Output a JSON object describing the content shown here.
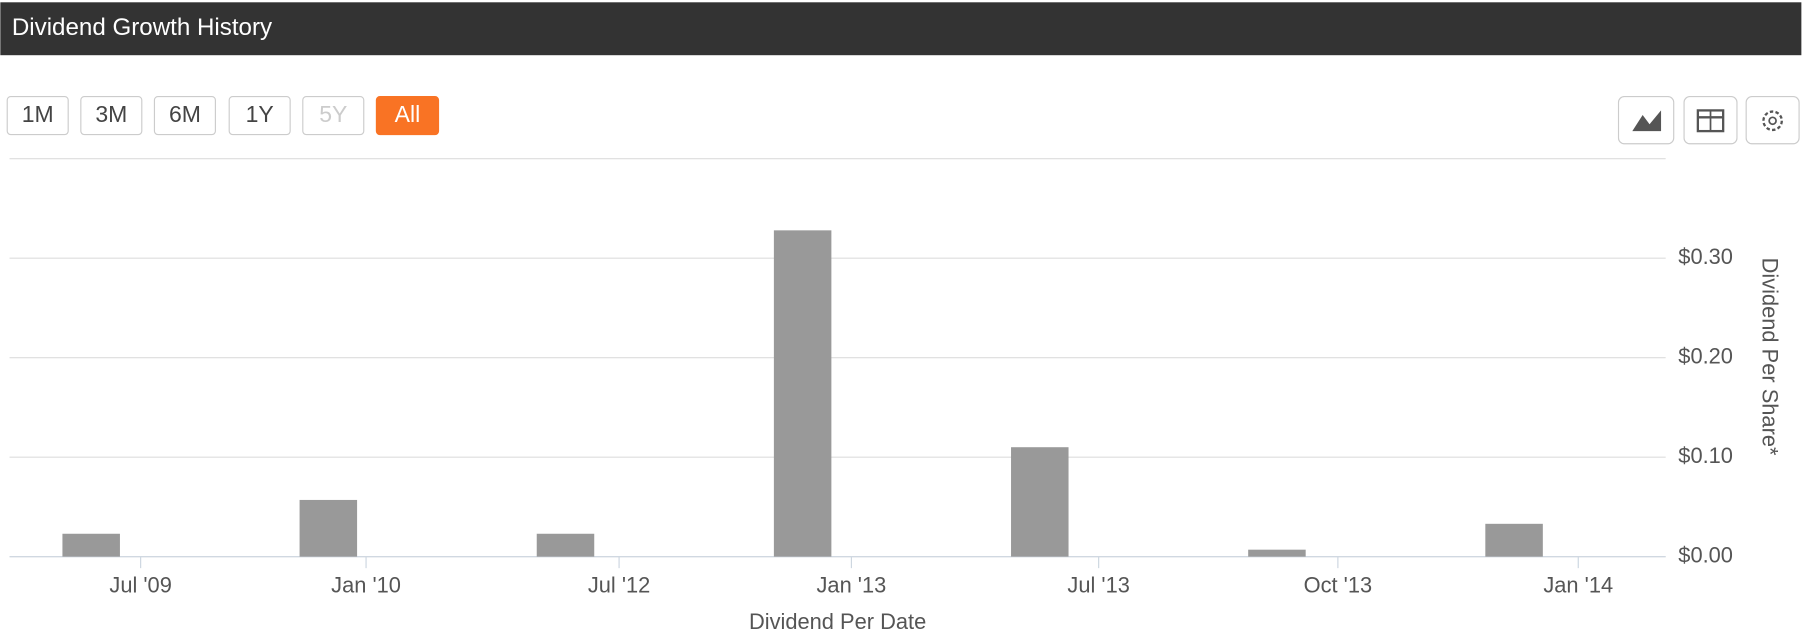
{
  "header": {
    "title": "Dividend Growth History"
  },
  "range_buttons": [
    "1M",
    "3M",
    "6M",
    "1Y",
    "5Y",
    "All"
  ],
  "chart_data": {
    "type": "bar",
    "categories": [
      null,
      null,
      null,
      null,
      null,
      null,
      null
    ],
    "values": [
      0.023,
      0.057,
      0.023,
      0.328,
      0.11,
      0.007,
      0.033
    ],
    "color": "#999999",
    "xtick_labels": [
      "Jul '09",
      "Jan '10",
      "Jul '12",
      "Jan '13",
      "Jul '13",
      "Oct '13",
      "Jan '14"
    ],
    "x_label": "Dividend Per Date",
    "y_label": "Dividend Per Share*",
    "ylim": [
      0,
      0.4
    ],
    "yticks": [
      {
        "value": 0,
        "label": "$0.00"
      },
      {
        "value": 0.1,
        "label": "$0.10"
      },
      {
        "value": 0.2,
        "label": "$0.20"
      },
      {
        "value": 0.3,
        "label": "$0.30"
      }
    ],
    "grid": true
  }
}
